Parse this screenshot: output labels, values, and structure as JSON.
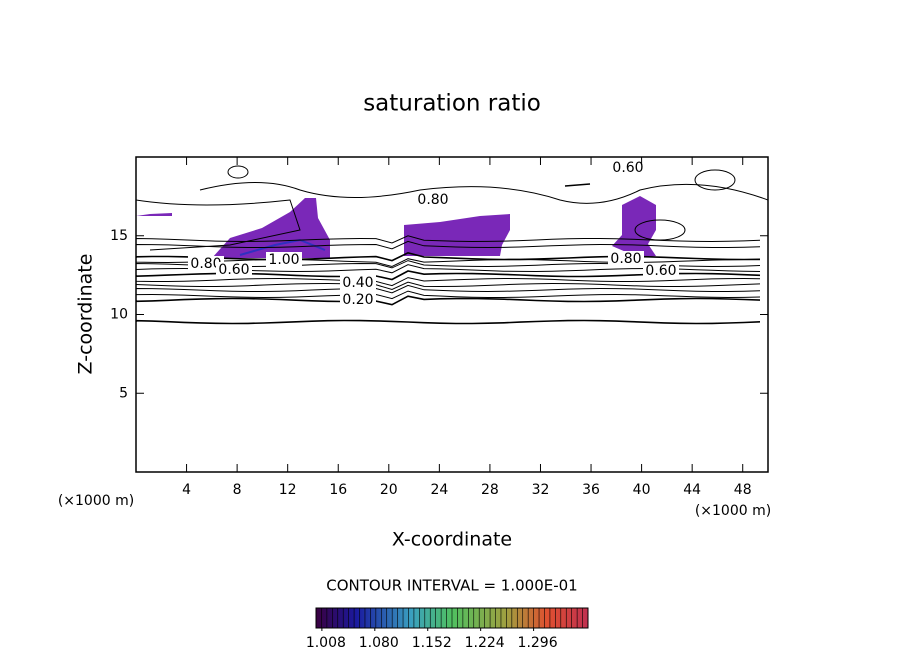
{
  "chart_data": {
    "type": "contour",
    "title": "saturation ratio",
    "x_label": "X-coordinate",
    "y_label": "Z-coordinate",
    "x_unit": "(×1000 m)",
    "y_unit": "(×1000 m)",
    "xlim": [
      0,
      50
    ],
    "ylim": [
      0,
      20
    ],
    "xticks": [
      4,
      8,
      12,
      16,
      20,
      24,
      28,
      32,
      36,
      40,
      44,
      48
    ],
    "yticks": [
      5,
      10,
      15
    ],
    "contour_labels": [
      "0.60",
      "0.80",
      "0.80",
      "1.00",
      "0.60",
      "0.40",
      "0.20",
      "0.80",
      "0.60"
    ],
    "contour_interval": "CONTOUR INTERVAL = 1.000E-01",
    "colorbar": {
      "clim": [
        1.0,
        1.37
      ],
      "ticks": [
        1.008,
        {
          "value": 1.08,
          "label": "1.080"
        },
        1.152,
        1.224,
        1.296
      ]
    }
  }
}
